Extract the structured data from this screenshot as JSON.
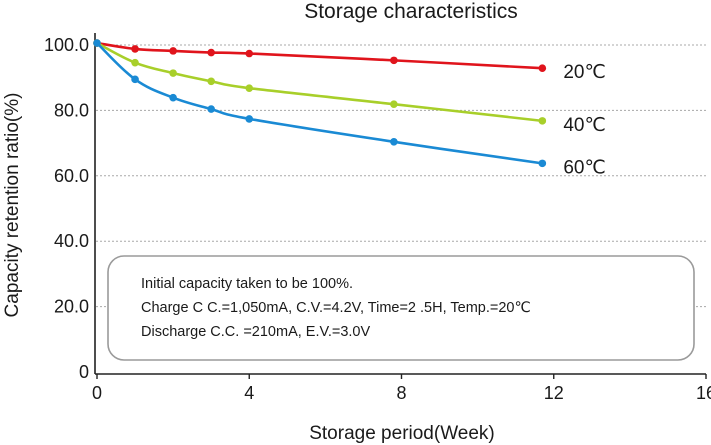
{
  "chart_data": {
    "type": "line",
    "title": "Storage characteristics",
    "xlabel": "Storage period(Week)",
    "ylabel": "Capacity retention ratio(%)",
    "xlim": [
      0,
      16
    ],
    "ylim": [
      0,
      100
    ],
    "xticks": [
      0,
      4,
      8,
      12,
      16
    ],
    "xtick_labels": [
      "0",
      "4",
      "8",
      "12",
      "16"
    ],
    "yticks": [
      0,
      20,
      40,
      60,
      80,
      100
    ],
    "ytick_labels": [
      "0",
      "20.0",
      "40.0",
      "60.0",
      "80.0",
      "100.0"
    ],
    "grid": "horizontal dashed",
    "series": [
      {
        "name": "20℃",
        "color": "#e0141c",
        "x": [
          0,
          1,
          2,
          3,
          4,
          7.8,
          11.7
        ],
        "y": [
          100.6,
          98.8,
          98.2,
          97.7,
          97.4,
          95.3,
          92.9
        ]
      },
      {
        "name": "40℃",
        "color": "#a8cf2a",
        "x": [
          0,
          1,
          2,
          3,
          4,
          7.8,
          11.7
        ],
        "y": [
          100.6,
          94.6,
          91.4,
          88.9,
          86.8,
          81.9,
          76.8
        ]
      },
      {
        "name": "60℃",
        "color": "#1a8ad4",
        "x": [
          0,
          1,
          2,
          3,
          4,
          7.8,
          11.7
        ],
        "y": [
          100.6,
          89.5,
          83.9,
          80.4,
          77.4,
          70.4,
          63.8
        ]
      }
    ],
    "annotation": {
      "lines": [
        "Initial capacity taken to be 100%.",
        "Charge C C.=1,050mA, C.V.=4.2V, Time=2 .5H, Temp.=20℃",
        "Discharge C.C. =210mA, E.V.=3.0V"
      ]
    }
  }
}
